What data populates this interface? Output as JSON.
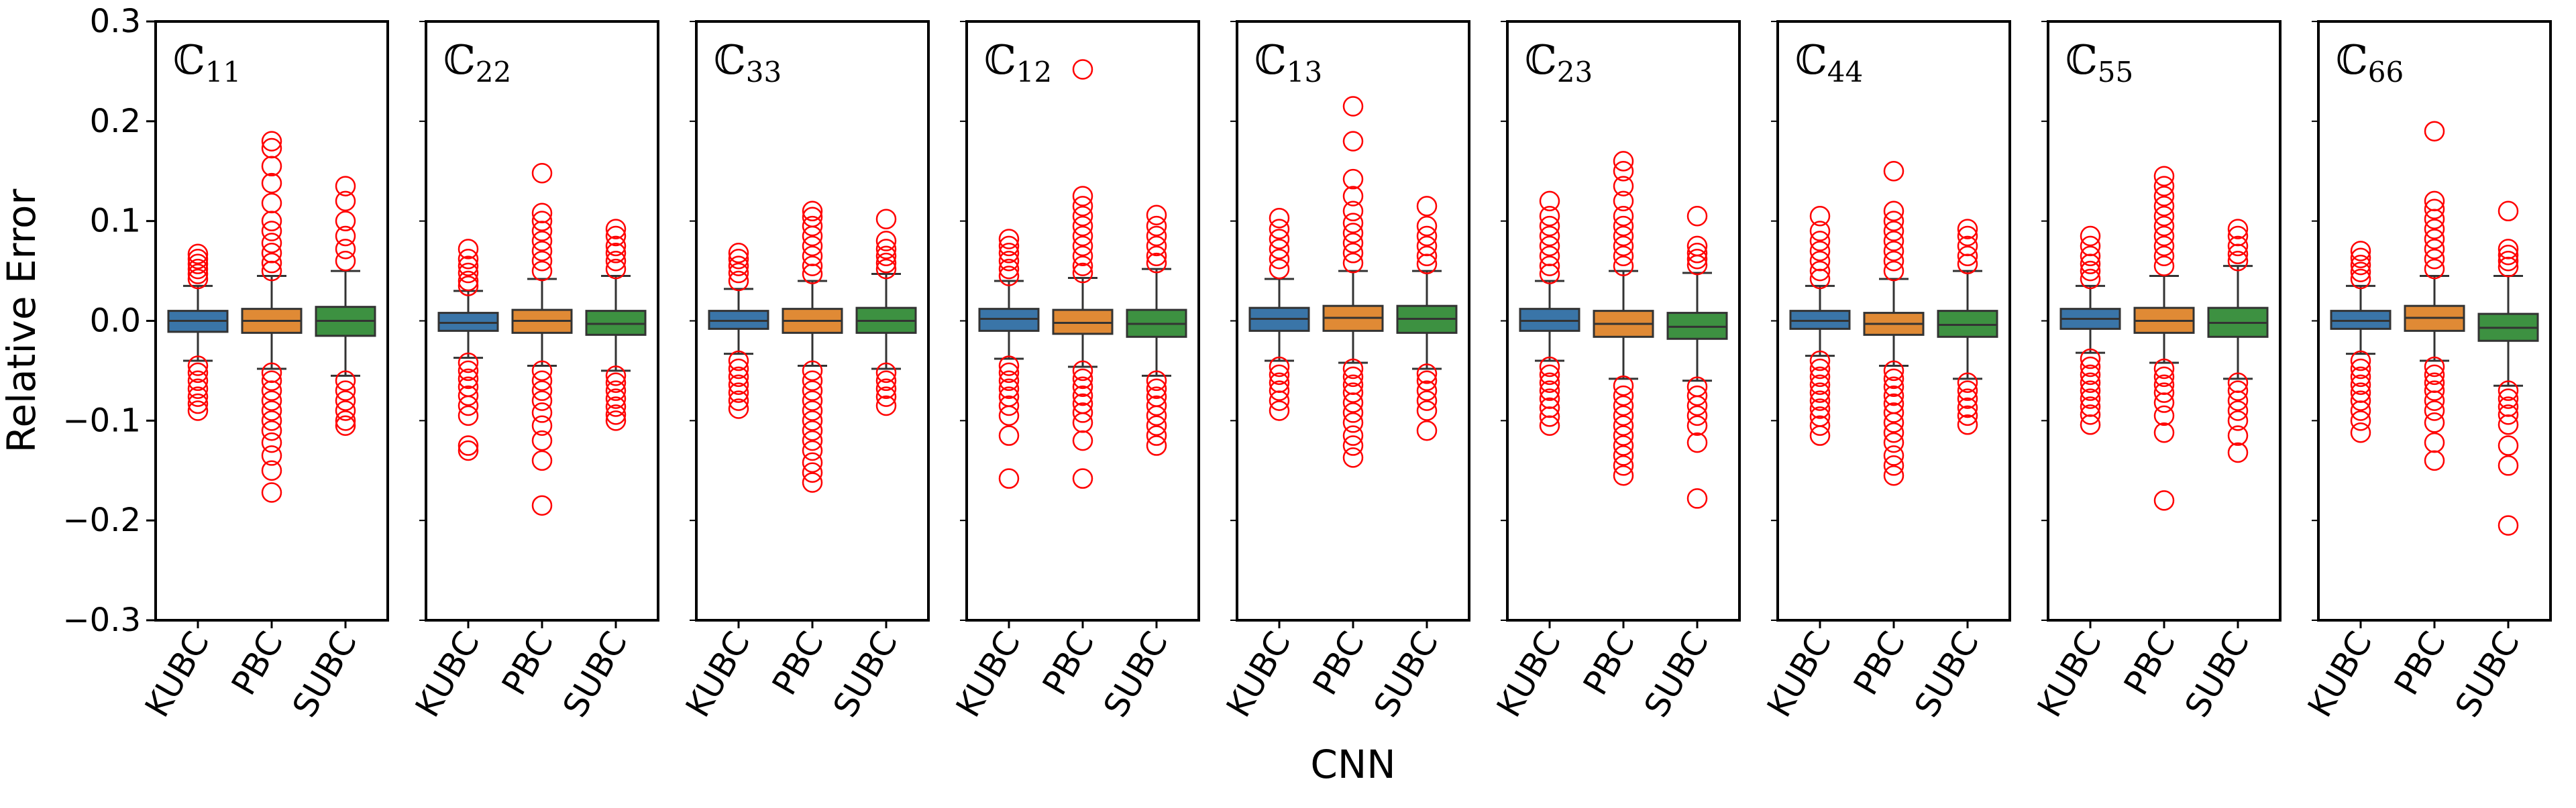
{
  "chart_data": {
    "type": "box",
    "xlabel": "CNN",
    "ylabel": "Relative Error",
    "ylim": [
      -0.3,
      0.3
    ],
    "yticks": [
      -0.3,
      -0.2,
      -0.1,
      0.0,
      0.1,
      0.2,
      0.3
    ],
    "ytick_labels": [
      "−0.3",
      "−0.2",
      "−0.1",
      "0.0",
      "0.1",
      "0.2",
      "0.3"
    ],
    "categories": [
      "KUBC",
      "PBC",
      "SUBC"
    ],
    "colors": {
      "KUBC": "#3a75a8",
      "PBC": "#e08a35",
      "SUBC": "#3d9141",
      "outlier": "#ff0000"
    },
    "panels": [
      {
        "title": "ℂ",
        "subscript": "11",
        "boxes": [
          {
            "q1": -0.011,
            "median": 0.0,
            "q3": 0.01,
            "whisker_low": -0.04,
            "whisker_high": 0.035,
            "outliers": [
              0.067,
              0.062,
              0.057,
              0.052,
              0.047,
              0.042,
              -0.045,
              -0.052,
              -0.06,
              -0.068,
              -0.076,
              -0.083,
              -0.09
            ]
          },
          {
            "q1": -0.012,
            "median": 0.0,
            "q3": 0.012,
            "whisker_low": -0.048,
            "whisker_high": 0.045,
            "outliers": [
              0.18,
              0.173,
              0.155,
              0.138,
              0.118,
              0.1,
              0.09,
              0.078,
              0.068,
              0.058,
              0.05,
              -0.052,
              -0.06,
              -0.07,
              -0.08,
              -0.09,
              -0.1,
              -0.11,
              -0.122,
              -0.135,
              -0.15,
              -0.172
            ]
          },
          {
            "q1": -0.015,
            "median": 0.0,
            "q3": 0.014,
            "whisker_low": -0.055,
            "whisker_high": 0.05,
            "outliers": [
              0.135,
              0.12,
              0.1,
              0.085,
              0.072,
              0.06,
              -0.06,
              -0.07,
              -0.08,
              -0.09,
              -0.1,
              -0.105
            ]
          }
        ]
      },
      {
        "title": "ℂ",
        "subscript": "22",
        "boxes": [
          {
            "q1": -0.01,
            "median": -0.002,
            "q3": 0.008,
            "whisker_low": -0.037,
            "whisker_high": 0.03,
            "outliers": [
              0.072,
              0.062,
              0.055,
              0.048,
              0.04,
              0.035,
              -0.042,
              -0.05,
              -0.058,
              -0.066,
              -0.075,
              -0.085,
              -0.095,
              -0.125,
              -0.13
            ]
          },
          {
            "q1": -0.012,
            "median": 0.0,
            "q3": 0.011,
            "whisker_low": -0.045,
            "whisker_high": 0.042,
            "outliers": [
              0.148,
              0.108,
              0.1,
              0.09,
              0.08,
              0.07,
              0.06,
              0.05,
              -0.05,
              -0.06,
              -0.07,
              -0.08,
              -0.092,
              -0.105,
              -0.12,
              -0.14,
              -0.185
            ]
          },
          {
            "q1": -0.014,
            "median": -0.003,
            "q3": 0.01,
            "whisker_low": -0.05,
            "whisker_high": 0.045,
            "outliers": [
              0.092,
              0.085,
              0.075,
              0.068,
              0.06,
              0.052,
              -0.055,
              -0.062,
              -0.07,
              -0.078,
              -0.086,
              -0.094,
              -0.1
            ]
          }
        ]
      },
      {
        "title": "ℂ",
        "subscript": "33",
        "boxes": [
          {
            "q1": -0.008,
            "median": 0.0,
            "q3": 0.01,
            "whisker_low": -0.033,
            "whisker_high": 0.032,
            "outliers": [
              0.068,
              0.062,
              0.055,
              0.048,
              0.04,
              -0.04,
              -0.048,
              -0.056,
              -0.064,
              -0.072,
              -0.08,
              -0.088
            ]
          },
          {
            "q1": -0.012,
            "median": 0.0,
            "q3": 0.012,
            "whisker_low": -0.045,
            "whisker_high": 0.04,
            "outliers": [
              0.11,
              0.104,
              0.095,
              0.085,
              0.075,
              0.065,
              0.055,
              0.047,
              -0.05,
              -0.06,
              -0.07,
              -0.08,
              -0.09,
              -0.1,
              -0.11,
              -0.12,
              -0.13,
              -0.142,
              -0.152,
              -0.162
            ]
          },
          {
            "q1": -0.012,
            "median": 0.0,
            "q3": 0.013,
            "whisker_low": -0.048,
            "whisker_high": 0.047,
            "outliers": [
              0.102,
              0.08,
              0.072,
              0.065,
              0.058,
              0.052,
              -0.052,
              -0.06,
              -0.068,
              -0.076,
              -0.085
            ]
          }
        ]
      },
      {
        "title": "ℂ",
        "subscript": "12",
        "boxes": [
          {
            "q1": -0.01,
            "median": 0.002,
            "q3": 0.012,
            "whisker_low": -0.038,
            "whisker_high": 0.04,
            "outliers": [
              0.082,
              0.075,
              0.068,
              0.06,
              0.052,
              0.045,
              -0.045,
              -0.052,
              -0.06,
              -0.068,
              -0.076,
              -0.085,
              -0.095,
              -0.115,
              -0.158
            ]
          },
          {
            "q1": -0.013,
            "median": -0.002,
            "q3": 0.011,
            "whisker_low": -0.046,
            "whisker_high": 0.043,
            "outliers": [
              0.252,
              0.125,
              0.115,
              0.105,
              0.095,
              0.085,
              0.075,
              0.065,
              0.055,
              0.048,
              -0.05,
              -0.058,
              -0.066,
              -0.075,
              -0.083,
              -0.092,
              -0.102,
              -0.12,
              -0.158
            ]
          },
          {
            "q1": -0.016,
            "median": -0.003,
            "q3": 0.011,
            "whisker_low": -0.055,
            "whisker_high": 0.052,
            "outliers": [
              0.106,
              0.095,
              0.085,
              0.075,
              0.065,
              0.058,
              -0.06,
              -0.068,
              -0.076,
              -0.085,
              -0.095,
              -0.105,
              -0.115,
              -0.125
            ]
          }
        ]
      },
      {
        "title": "ℂ",
        "subscript": "13",
        "boxes": [
          {
            "q1": -0.01,
            "median": 0.002,
            "q3": 0.013,
            "whisker_low": -0.04,
            "whisker_high": 0.042,
            "outliers": [
              0.103,
              0.092,
              0.082,
              0.072,
              0.062,
              0.052,
              -0.046,
              -0.054,
              -0.062,
              -0.07,
              -0.08,
              -0.09
            ]
          },
          {
            "q1": -0.01,
            "median": 0.003,
            "q3": 0.015,
            "whisker_low": -0.042,
            "whisker_high": 0.05,
            "outliers": [
              0.215,
              0.18,
              0.142,
              0.125,
              0.11,
              0.098,
              0.088,
              0.078,
              0.068,
              0.058,
              -0.048,
              -0.056,
              -0.064,
              -0.072,
              -0.082,
              -0.092,
              -0.102,
              -0.115,
              -0.125,
              -0.137
            ]
          },
          {
            "q1": -0.012,
            "median": 0.002,
            "q3": 0.015,
            "whisker_low": -0.048,
            "whisker_high": 0.05,
            "outliers": [
              0.115,
              0.095,
              0.085,
              0.075,
              0.065,
              0.057,
              -0.053,
              -0.06,
              -0.07,
              -0.08,
              -0.09,
              -0.11
            ]
          }
        ]
      },
      {
        "title": "ℂ",
        "subscript": "23",
        "boxes": [
          {
            "q1": -0.01,
            "median": 0.0,
            "q3": 0.012,
            "whisker_low": -0.04,
            "whisker_high": 0.04,
            "outliers": [
              0.12,
              0.105,
              0.095,
              0.085,
              0.075,
              0.065,
              0.055,
              0.047,
              -0.046,
              -0.054,
              -0.062,
              -0.07,
              -0.078,
              -0.087,
              -0.096,
              -0.105
            ]
          },
          {
            "q1": -0.016,
            "median": -0.003,
            "q3": 0.01,
            "whisker_low": -0.058,
            "whisker_high": 0.05,
            "outliers": [
              0.16,
              0.15,
              0.135,
              0.12,
              0.105,
              0.095,
              0.085,
              0.075,
              0.065,
              0.055,
              -0.065,
              -0.075,
              -0.085,
              -0.095,
              -0.105,
              -0.115,
              -0.125,
              -0.135,
              -0.145,
              -0.155
            ]
          },
          {
            "q1": -0.018,
            "median": -0.006,
            "q3": 0.008,
            "whisker_low": -0.06,
            "whisker_high": 0.048,
            "outliers": [
              0.105,
              0.075,
              0.068,
              0.062,
              0.056,
              -0.066,
              -0.075,
              -0.085,
              -0.095,
              -0.105,
              -0.122,
              -0.178
            ]
          }
        ]
      },
      {
        "title": "ℂ",
        "subscript": "44",
        "boxes": [
          {
            "q1": -0.008,
            "median": 0.0,
            "q3": 0.01,
            "whisker_low": -0.035,
            "whisker_high": 0.035,
            "outliers": [
              0.105,
              0.09,
              0.08,
              0.07,
              0.06,
              0.05,
              0.042,
              -0.04,
              -0.048,
              -0.056,
              -0.064,
              -0.072,
              -0.08,
              -0.088,
              -0.096,
              -0.105,
              -0.115
            ]
          },
          {
            "q1": -0.014,
            "median": -0.003,
            "q3": 0.008,
            "whisker_low": -0.045,
            "whisker_high": 0.042,
            "outliers": [
              0.15,
              0.11,
              0.1,
              0.09,
              0.08,
              0.07,
              0.06,
              0.05,
              -0.05,
              -0.058,
              -0.066,
              -0.075,
              -0.083,
              -0.092,
              -0.102,
              -0.112,
              -0.122,
              -0.135,
              -0.145,
              -0.155
            ]
          },
          {
            "q1": -0.016,
            "median": -0.004,
            "q3": 0.01,
            "whisker_low": -0.058,
            "whisker_high": 0.05,
            "outliers": [
              0.092,
              0.085,
              0.075,
              0.065,
              0.057,
              -0.062,
              -0.07,
              -0.078,
              -0.087,
              -0.095,
              -0.104
            ]
          }
        ]
      },
      {
        "title": "ℂ",
        "subscript": "55",
        "boxes": [
          {
            "q1": -0.008,
            "median": 0.002,
            "q3": 0.012,
            "whisker_low": -0.032,
            "whisker_high": 0.035,
            "outliers": [
              0.085,
              0.075,
              0.065,
              0.057,
              0.05,
              0.042,
              -0.038,
              -0.046,
              -0.054,
              -0.062,
              -0.07,
              -0.078,
              -0.086,
              -0.094,
              -0.104
            ]
          },
          {
            "q1": -0.012,
            "median": 0.0,
            "q3": 0.013,
            "whisker_low": -0.042,
            "whisker_high": 0.045,
            "outliers": [
              0.145,
              0.135,
              0.125,
              0.115,
              0.105,
              0.095,
              0.085,
              0.075,
              0.065,
              0.055,
              -0.048,
              -0.056,
              -0.064,
              -0.072,
              -0.082,
              -0.095,
              -0.112,
              -0.18
            ]
          },
          {
            "q1": -0.016,
            "median": -0.002,
            "q3": 0.013,
            "whisker_low": -0.058,
            "whisker_high": 0.055,
            "outliers": [
              0.092,
              0.085,
              0.075,
              0.067,
              0.06,
              -0.062,
              -0.07,
              -0.08,
              -0.09,
              -0.1,
              -0.115,
              -0.132
            ]
          }
        ]
      },
      {
        "title": "ℂ",
        "subscript": "66",
        "boxes": [
          {
            "q1": -0.008,
            "median": 0.0,
            "q3": 0.01,
            "whisker_low": -0.033,
            "whisker_high": 0.035,
            "outliers": [
              0.07,
              0.063,
              0.056,
              0.049,
              0.042,
              -0.04,
              -0.048,
              -0.056,
              -0.064,
              -0.072,
              -0.08,
              -0.09,
              -0.1,
              -0.112
            ]
          },
          {
            "q1": -0.01,
            "median": 0.003,
            "q3": 0.015,
            "whisker_low": -0.04,
            "whisker_high": 0.045,
            "outliers": [
              0.19,
              0.12,
              0.112,
              0.102,
              0.092,
              0.082,
              0.072,
              0.062,
              0.052,
              -0.046,
              -0.054,
              -0.062,
              -0.07,
              -0.08,
              -0.09,
              -0.102,
              -0.122,
              -0.14
            ]
          },
          {
            "q1": -0.02,
            "median": -0.007,
            "q3": 0.007,
            "whisker_low": -0.065,
            "whisker_high": 0.045,
            "outliers": [
              0.11,
              0.072,
              0.066,
              0.06,
              0.054,
              -0.07,
              -0.078,
              -0.086,
              -0.094,
              -0.104,
              -0.125,
              -0.145,
              -0.205
            ]
          }
        ]
      }
    ]
  }
}
